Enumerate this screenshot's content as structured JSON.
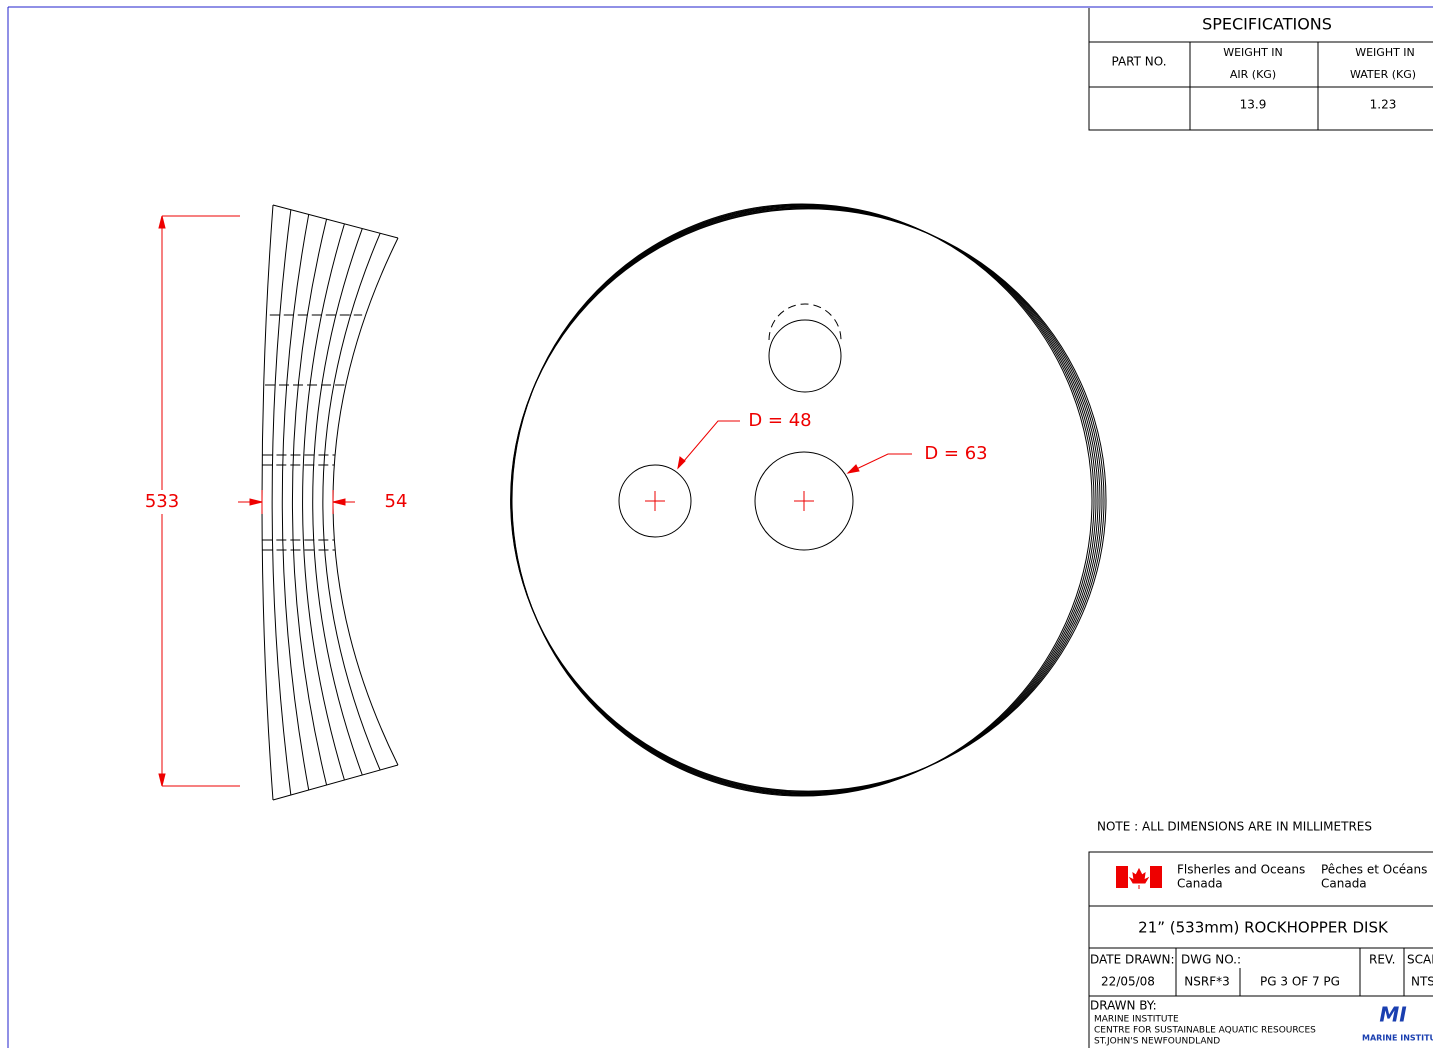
{
  "specifications": {
    "title": "SPECIFICATIONS",
    "part_no": "PART NO.",
    "weight_air": [
      "WEIGHT IN",
      "AIR (KG)"
    ],
    "weight_water": [
      "WEIGHT IN",
      "WATER (KG)"
    ],
    "values": {
      "weight_air": 13.9,
      "weight_water": 1.23
    }
  },
  "dimensions": {
    "height": "533",
    "thickness": "54",
    "small_hole": "D = 48",
    "large_hole": "D = 63"
  },
  "note": "NOTE : ALL DIMENSIONS ARE IN MILLIMETRES",
  "title_block": {
    "agency_en": [
      "Flsherles and Oceans",
      "Canada"
    ],
    "agency_fr": [
      "Pêches et Océans",
      "Canada"
    ],
    "title": "21” (533mm) ROCKHOPPER DISK",
    "date_drawn": {
      "label": "DATE DRAWN:",
      "value": "22/05/08"
    },
    "dwg_no": {
      "label": "DWG NO.:",
      "value": "NSRF*3"
    },
    "page": "PG 3 OF 7 PG",
    "rev": "REV.",
    "scale": {
      "label": "SCAL",
      "value": "NTS"
    },
    "drawn_by": {
      "label": "DRAWN BY:",
      "lines": [
        "MARINE INSTITUTE",
        "CENTRE FOR SUSTAINABLE AQUATIC RESOURCES",
        "ST.JOHN'S NEWFOUNDLAND"
      ]
    },
    "logo": {
      "mark": "MI",
      "name": "MARINE INSTITU"
    }
  }
}
